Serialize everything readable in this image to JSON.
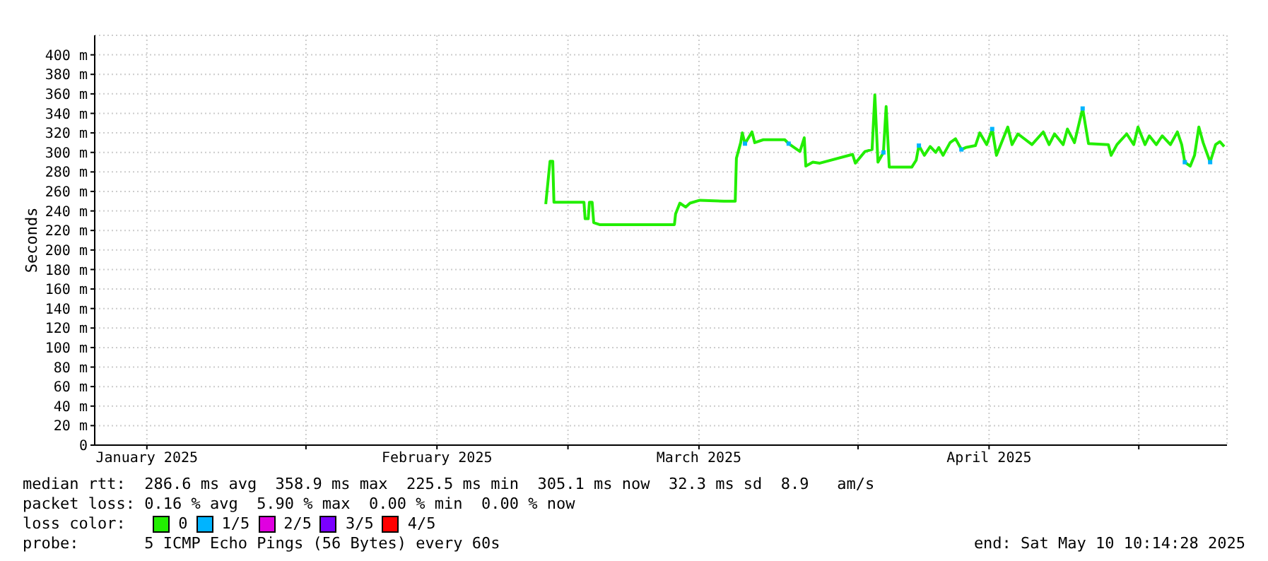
{
  "chart_data": {
    "type": "line",
    "ylabel": "Seconds",
    "legend_title": "loss color:",
    "legend": "bottom",
    "grid": true,
    "line_style": "solid",
    "xlim": [
      "2025-01-09T10:14",
      "2025-05-10T10:14"
    ],
    "xticks": [
      {
        "value": "2025-02-01",
        "label": null
      },
      {
        "value": "2025-03-01",
        "label": null
      },
      {
        "value": "2025-04-01",
        "label": null
      },
      {
        "value": "2025-05-01",
        "label": null
      },
      {
        "value": "2025-01-15",
        "label": "January 2025"
      },
      {
        "value": "2025-02-15",
        "label": "February 2025"
      },
      {
        "value": "2025-03-15",
        "label": "March 2025"
      },
      {
        "value": "2025-04-15",
        "label": "April 2025"
      }
    ],
    "ylim": [
      0,
      420
    ],
    "yticks": [
      {
        "value": 0,
        "label": "0"
      },
      {
        "value": 20,
        "label": "20 m"
      },
      {
        "value": 40,
        "label": "40 m"
      },
      {
        "value": 60,
        "label": "60 m"
      },
      {
        "value": 80,
        "label": "80 m"
      },
      {
        "value": 100,
        "label": "100 m"
      },
      {
        "value": 120,
        "label": "120 m"
      },
      {
        "value": 140,
        "label": "140 m"
      },
      {
        "value": 160,
        "label": "160 m"
      },
      {
        "value": 180,
        "label": "180 m"
      },
      {
        "value": 200,
        "label": "200 m"
      },
      {
        "value": 220,
        "label": "220 m"
      },
      {
        "value": 240,
        "label": "240 m"
      },
      {
        "value": 260,
        "label": "260 m"
      },
      {
        "value": 280,
        "label": "280 m"
      },
      {
        "value": 300,
        "label": "300 m"
      },
      {
        "value": 320,
        "label": "320 m"
      },
      {
        "value": 340,
        "label": "340 m"
      },
      {
        "value": 360,
        "label": "360 m"
      },
      {
        "value": 380,
        "label": "380 m"
      },
      {
        "value": 400,
        "label": "400 m"
      }
    ],
    "series": [
      {
        "name": "0",
        "color": "#22ee00",
        "x": [
          "2025-02-26T15:00",
          "2025-02-27T02:00",
          "2025-02-27T09:00",
          "2025-02-27T12:00",
          "2025-03-02T17:00",
          "2025-03-02T20:00",
          "2025-03-03T04:00",
          "2025-03-03T07:00",
          "2025-03-03T14:00",
          "2025-03-03T18:00",
          "2025-03-04T09:00",
          "2025-03-12T09:00",
          "2025-03-12T12:00",
          "2025-03-12T23:00",
          "2025-03-13T14:00",
          "2025-03-14T01:00",
          "2025-03-15T02:00",
          "2025-03-17T16:00",
          "2025-03-18T21:00",
          "2025-03-19T00:00",
          "2025-03-19T11:00",
          "2025-03-19T15:00",
          "2025-03-19T22:00",
          "2025-03-20T16:00",
          "2025-03-20T23:00",
          "2025-03-21T21:00",
          "2025-03-24T04:00",
          "2025-03-24T14:00",
          "2025-03-25T19:00",
          "2025-03-26T06:00",
          "2025-03-26T10:00",
          "2025-03-27T04:00",
          "2025-03-27T22:00",
          "2025-03-31T10:00",
          "2025-03-31T17:00",
          "2025-04-01T18:00",
          "2025-04-02T12:00",
          "2025-04-02T19:00",
          "2025-04-03T03:00",
          "2025-04-03T17:00",
          "2025-04-04T00:00",
          "2025-04-04T08:00",
          "2025-04-06T18:00",
          "2025-04-07T05:00",
          "2025-04-07T12:00",
          "2025-04-08T02:00",
          "2025-04-08T17:00",
          "2025-04-09T07:00",
          "2025-04-09T15:00",
          "2025-04-10T02:00",
          "2025-04-10T20:00",
          "2025-04-11T10:00",
          "2025-04-12T01:00",
          "2025-04-12T12:00",
          "2025-04-13T13:00",
          "2025-04-14T00:00",
          "2025-04-14T18:00",
          "2025-04-15T08:00",
          "2025-04-15T19:00",
          "2025-04-17T00:00",
          "2025-04-17T11:00",
          "2025-04-18T02:00",
          "2025-04-19T14:00",
          "2025-04-20T19:00",
          "2025-04-21T10:00",
          "2025-04-22T00:00",
          "2025-04-22T22:00",
          "2025-04-23T09:00",
          "2025-04-24T03:00",
          "2025-04-25T00:00",
          "2025-04-25T15:00",
          "2025-04-27T18:00",
          "2025-04-28T01:00",
          "2025-04-28T16:00",
          "2025-04-29T17:00",
          "2025-04-30T11:00",
          "2025-04-30T22:00",
          "2025-05-01T16:00",
          "2025-05-02T03:00",
          "2025-05-02T21:00",
          "2025-05-03T12:00",
          "2025-05-04T09:00",
          "2025-05-05T03:00",
          "2025-05-05T14:00",
          "2025-05-05T22:00",
          "2025-05-06T12:00",
          "2025-05-06T23:00",
          "2025-05-07T10:00",
          "2025-05-07T21:00",
          "2025-05-08T15:00",
          "2025-05-09T05:00",
          "2025-05-09T16:00",
          "2025-05-10T03:00"
        ],
        "values": [
          247,
          291,
          291,
          249,
          249,
          232,
          232,
          249,
          249,
          228,
          226,
          226,
          237,
          248,
          244,
          248,
          251,
          250,
          250,
          294,
          310,
          320,
          309,
          321,
          310,
          313,
          313,
          309,
          301,
          315,
          286,
          290,
          289,
          298,
          289,
          301,
          303,
          359,
          290,
          300,
          347,
          285,
          285,
          292,
          307,
          297,
          306,
          300,
          305,
          297,
          310,
          314,
          303,
          305,
          307,
          320,
          308,
          324,
          297,
          326,
          308,
          319,
          308,
          321,
          308,
          319,
          308,
          324,
          310,
          345,
          309,
          308,
          297,
          308,
          319,
          308,
          326,
          308,
          317,
          308,
          317,
          308,
          321,
          308,
          290,
          286,
          297,
          326,
          310,
          290,
          308,
          311,
          306
        ]
      },
      {
        "name": "1/5",
        "type": "scatter",
        "marker": "square",
        "color": "#00b4ff",
        "x": [
          "2025-03-19T22:00",
          "2025-03-24T14:00",
          "2025-04-03T17:00",
          "2025-04-07T12:00",
          "2025-04-12T01:00",
          "2025-04-15T08:00",
          "2025-04-25T00:00",
          "2025-05-05T22:00",
          "2025-05-08T15:00"
        ],
        "values": [
          309,
          309,
          300,
          307,
          303,
          324,
          345,
          290,
          290
        ]
      },
      {
        "name": "2/5",
        "type": "scatter",
        "color": "#e000e0"
      },
      {
        "name": "3/5",
        "type": "scatter",
        "color": "#7a00ff"
      },
      {
        "name": "4/5",
        "type": "scatter",
        "color": "#ff0000"
      }
    ],
    "annotations": [
      "median rtt:  286.6 ms avg  358.9 ms max  225.5 ms min  305.1 ms now  32.3 ms sd  8.9   am/s",
      "packet loss: 0.16 % avg  5.90 % max  0.00 % min  0.00 % now",
      "probe:       5 ICMP Echo Pings (56 Bytes) every 60s",
      "end: Sat May 10 10:14:28 2025"
    ]
  }
}
